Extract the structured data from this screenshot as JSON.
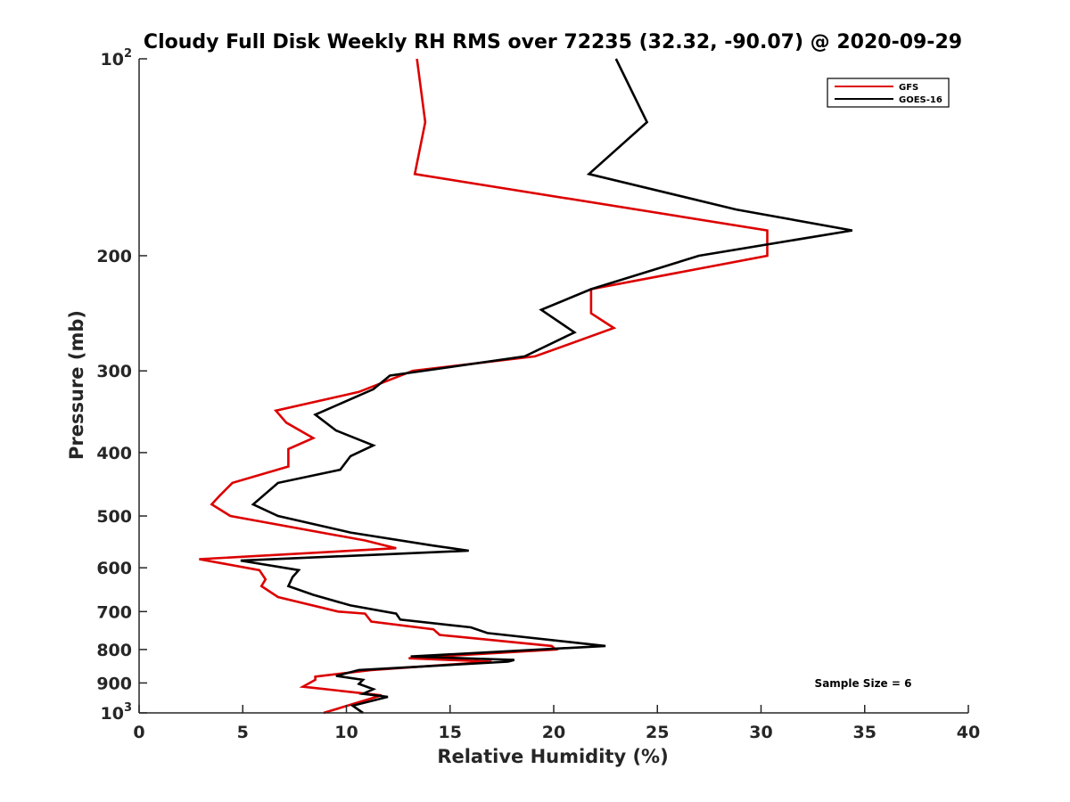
{
  "chart_data": {
    "type": "line",
    "title": "Cloudy Full Disk Weekly RH RMS over 72235 (32.32, -90.07) @ 2020-09-29",
    "xlabel": "Relative Humidity (%)",
    "ylabel": "Pressure (mb)",
    "xlim": [
      0,
      40
    ],
    "ylim": [
      100,
      1000
    ],
    "yscale": "log",
    "yreversed": true,
    "x_ticks": [
      "0",
      "5",
      "10",
      "15",
      "20",
      "25",
      "30",
      "35",
      "40"
    ],
    "y_ticks": [
      {
        "value": 100,
        "label": "10",
        "sup": "2"
      },
      {
        "value": 200,
        "label": "200",
        "sup": ""
      },
      {
        "value": 300,
        "label": "300",
        "sup": ""
      },
      {
        "value": 400,
        "label": "400",
        "sup": ""
      },
      {
        "value": 500,
        "label": "500",
        "sup": ""
      },
      {
        "value": 600,
        "label": "600",
        "sup": ""
      },
      {
        "value": 700,
        "label": "700",
        "sup": ""
      },
      {
        "value": 800,
        "label": "800",
        "sup": ""
      },
      {
        "value": 900,
        "label": "900",
        "sup": ""
      },
      {
        "value": 1000,
        "label": "10",
        "sup": "3"
      }
    ],
    "legend_position": "top-right",
    "annotation": "Sample Size = 6",
    "series": [
      {
        "name": "GFS",
        "color": "#dd0000",
        "points": [
          [
            13.4,
            100
          ],
          [
            13.8,
            125
          ],
          [
            13.3,
            150
          ],
          [
            30.3,
            183
          ],
          [
            30.3,
            200
          ],
          [
            21.8,
            225
          ],
          [
            21.8,
            245
          ],
          [
            22.9,
            258
          ],
          [
            19.1,
            285
          ],
          [
            13.2,
            300
          ],
          [
            10.6,
            323
          ],
          [
            6.6,
            345
          ],
          [
            7.1,
            360
          ],
          [
            8.4,
            380
          ],
          [
            7.2,
            395
          ],
          [
            7.2,
            420
          ],
          [
            4.5,
            445
          ],
          [
            3.9,
            465
          ],
          [
            3.5,
            480
          ],
          [
            4.4,
            500
          ],
          [
            10.9,
            545
          ],
          [
            12.4,
            560
          ],
          [
            2.9,
            582
          ],
          [
            5.8,
            605
          ],
          [
            6.1,
            625
          ],
          [
            5.9,
            640
          ],
          [
            6.7,
            665
          ],
          [
            9.6,
            700
          ],
          [
            10.9,
            705
          ],
          [
            11.2,
            725
          ],
          [
            14.2,
            745
          ],
          [
            14.5,
            760
          ],
          [
            19.9,
            790
          ],
          [
            20.1,
            800
          ],
          [
            13.0,
            825
          ],
          [
            17.0,
            835
          ],
          [
            11.2,
            860
          ],
          [
            8.5,
            880
          ],
          [
            8.5,
            890
          ],
          [
            7.9,
            912
          ],
          [
            11.7,
            940
          ],
          [
            8.9,
            1000
          ]
        ]
      },
      {
        "name": "GOES-16",
        "color": "#000000",
        "points": [
          [
            23.0,
            100
          ],
          [
            24.5,
            125
          ],
          [
            21.7,
            150
          ],
          [
            28.8,
            170
          ],
          [
            34.4,
            183
          ],
          [
            27.0,
            200
          ],
          [
            21.8,
            225
          ],
          [
            19.4,
            242
          ],
          [
            21.0,
            262
          ],
          [
            18.6,
            285
          ],
          [
            12.1,
            305
          ],
          [
            11.3,
            320
          ],
          [
            8.5,
            350
          ],
          [
            9.5,
            370
          ],
          [
            11.3,
            390
          ],
          [
            10.2,
            405
          ],
          [
            9.7,
            425
          ],
          [
            6.7,
            445
          ],
          [
            5.5,
            480
          ],
          [
            6.7,
            500
          ],
          [
            10.2,
            530
          ],
          [
            14.2,
            555
          ],
          [
            15.9,
            565
          ],
          [
            4.9,
            585
          ],
          [
            7.7,
            605
          ],
          [
            7.4,
            620
          ],
          [
            7.2,
            640
          ],
          [
            8.4,
            660
          ],
          [
            10.2,
            685
          ],
          [
            12.4,
            705
          ],
          [
            12.6,
            720
          ],
          [
            16.0,
            740
          ],
          [
            16.8,
            755
          ],
          [
            22.5,
            790
          ],
          [
            13.1,
            820
          ],
          [
            18.1,
            830
          ],
          [
            17.8,
            835
          ],
          [
            10.6,
            860
          ],
          [
            9.5,
            878
          ],
          [
            10.8,
            890
          ],
          [
            10.6,
            903
          ],
          [
            11.3,
            920
          ],
          [
            10.8,
            935
          ],
          [
            12.0,
            945
          ],
          [
            10.3,
            975
          ],
          [
            10.8,
            1000
          ]
        ]
      }
    ]
  }
}
